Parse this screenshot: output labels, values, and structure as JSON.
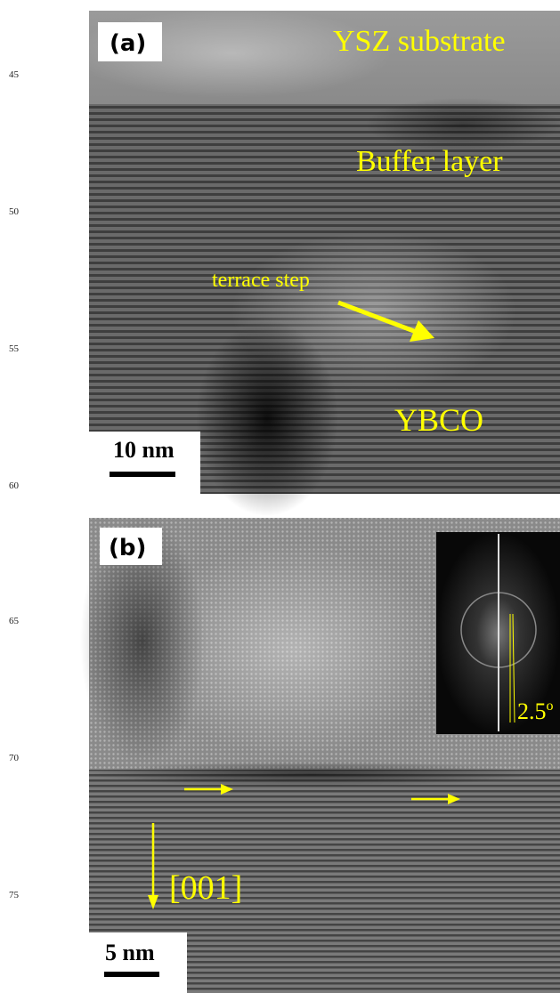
{
  "line_numbers": [
    45,
    50,
    55,
    60,
    65,
    70,
    75
  ],
  "panel_a": {
    "label": "(a)",
    "substrate": "YSZ substrate",
    "buffer": "Buffer layer",
    "step": "terrace step",
    "film": "YBCO",
    "scale_bar": "10 nm"
  },
  "panel_b": {
    "label": "(b)",
    "angle": "2.5",
    "angle_mark": "o",
    "direction": "[001]",
    "scale_bar": "5 nm"
  }
}
